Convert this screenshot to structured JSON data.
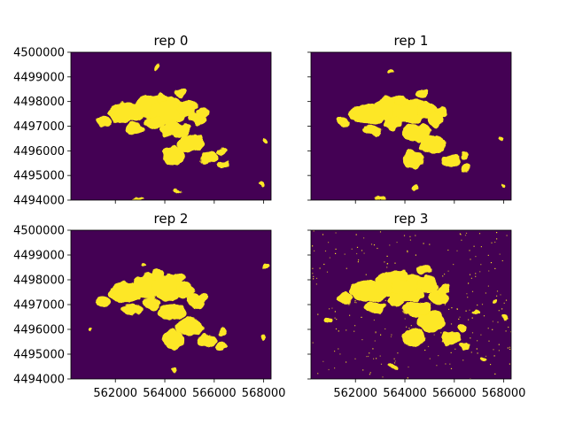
{
  "chart_data": {
    "type": "heatmap",
    "layout": "2x2 grid, shared x and y axes",
    "colormap": "viridis (binary)",
    "colors": {
      "background_value": "#440154",
      "foreground_value": "#fde725"
    },
    "x_range": [
      560200,
      568300
    ],
    "y_range": [
      4494000,
      4500000
    ],
    "x_ticks": [
      "562000",
      "564000",
      "566000",
      "568000"
    ],
    "x_tick_values": [
      562000,
      564000,
      566000,
      568000
    ],
    "y_ticks": [
      "4500000",
      "4499000",
      "4498000",
      "4497000",
      "4496000",
      "4495000",
      "4494000"
    ],
    "y_tick_values": [
      4500000,
      4499000,
      4498000,
      4497000,
      4496000,
      4495000,
      4494000
    ],
    "grid": false,
    "panels": [
      {
        "title": "rep 0",
        "blobs": [
          [
            562500,
            4497550,
            750,
            420
          ],
          [
            563450,
            4497800,
            650,
            500
          ],
          [
            564150,
            4497650,
            700,
            550
          ],
          [
            564900,
            4497750,
            400,
            350
          ],
          [
            565300,
            4497300,
            350,
            300
          ],
          [
            564400,
            4496850,
            600,
            320
          ],
          [
            565050,
            4496300,
            550,
            380
          ],
          [
            564350,
            4495800,
            450,
            400
          ],
          [
            565800,
            4495750,
            400,
            260
          ],
          [
            566350,
            4495450,
            200,
            170
          ],
          [
            561550,
            4497200,
            300,
            220
          ],
          [
            562800,
            4496900,
            400,
            210
          ],
          [
            563600,
            4497150,
            380,
            260
          ],
          [
            563900,
            4498100,
            260,
            200
          ],
          [
            564650,
            4498350,
            260,
            170
          ],
          [
            565550,
            4497550,
            250,
            200
          ],
          [
            566300,
            4496000,
            180,
            150
          ],
          [
            568000,
            4496400,
            110,
            120
          ],
          [
            563650,
            4499350,
            90,
            100
          ],
          [
            562950,
            4494050,
            280,
            60
          ],
          [
            564500,
            4494350,
            130,
            110
          ],
          [
            567950,
            4494600,
            90,
            80
          ]
        ]
      },
      {
        "title": "rep 1",
        "blobs": [
          [
            562500,
            4497500,
            750,
            400
          ],
          [
            563400,
            4497750,
            650,
            480
          ],
          [
            564150,
            4497600,
            700,
            520
          ],
          [
            564900,
            4497650,
            400,
            340
          ],
          [
            565250,
            4497250,
            330,
            280
          ],
          [
            564450,
            4496750,
            600,
            330
          ],
          [
            565100,
            4496250,
            550,
            370
          ],
          [
            564350,
            4495650,
            430,
            360
          ],
          [
            565850,
            4495600,
            380,
            260
          ],
          [
            566450,
            4495300,
            180,
            150
          ],
          [
            561500,
            4497150,
            280,
            200
          ],
          [
            562700,
            4496850,
            400,
            220
          ],
          [
            563500,
            4497100,
            380,
            250
          ],
          [
            563850,
            4498050,
            260,
            190
          ],
          [
            564700,
            4498300,
            250,
            160
          ],
          [
            565450,
            4497600,
            240,
            200
          ],
          [
            566400,
            4495850,
            180,
            150
          ],
          [
            567900,
            4496450,
            100,
            110
          ],
          [
            563450,
            4499200,
            90,
            90
          ],
          [
            563000,
            4494100,
            260,
            70
          ],
          [
            564400,
            4494500,
            120,
            100
          ],
          [
            568000,
            4494600,
            80,
            80
          ]
        ]
      },
      {
        "title": "rep 2",
        "blobs": [
          [
            562400,
            4497500,
            720,
            420
          ],
          [
            563350,
            4497750,
            650,
            480
          ],
          [
            564100,
            4497700,
            680,
            500
          ],
          [
            564850,
            4497600,
            380,
            330
          ],
          [
            565250,
            4497150,
            330,
            290
          ],
          [
            564300,
            4496700,
            600,
            320
          ],
          [
            565000,
            4496100,
            550,
            370
          ],
          [
            564300,
            4495600,
            420,
            380
          ],
          [
            565700,
            4495550,
            420,
            260
          ],
          [
            566300,
            4495350,
            190,
            150
          ],
          [
            561500,
            4497100,
            300,
            220
          ],
          [
            562650,
            4496800,
            400,
            230
          ],
          [
            563450,
            4497050,
            380,
            250
          ],
          [
            563700,
            4498200,
            250,
            190
          ],
          [
            564600,
            4498100,
            250,
            170
          ],
          [
            565500,
            4497300,
            240,
            200
          ],
          [
            566350,
            4495900,
            170,
            150
          ],
          [
            568050,
            4498550,
            110,
            110
          ],
          [
            563150,
            4498600,
            100,
            90
          ],
          [
            564400,
            4494400,
            130,
            110
          ],
          [
            568000,
            4495700,
            90,
            100
          ],
          [
            561000,
            4496000,
            80,
            70
          ]
        ]
      },
      {
        "title": "rep 3",
        "blobs": [
          [
            562500,
            4497550,
            750,
            440
          ],
          [
            563450,
            4497850,
            650,
            520
          ],
          [
            564200,
            4497700,
            720,
            560
          ],
          [
            564950,
            4497800,
            420,
            360
          ],
          [
            565350,
            4497300,
            350,
            300
          ],
          [
            564500,
            4496800,
            620,
            340
          ],
          [
            565100,
            4496300,
            560,
            390
          ],
          [
            564350,
            4495700,
            460,
            400
          ],
          [
            565850,
            4495650,
            420,
            270
          ],
          [
            566450,
            4495350,
            200,
            170
          ],
          [
            561550,
            4497250,
            300,
            230
          ],
          [
            562800,
            4496900,
            420,
            220
          ],
          [
            563600,
            4497200,
            380,
            260
          ],
          [
            563900,
            4498150,
            270,
            200
          ],
          [
            564750,
            4498400,
            270,
            170
          ],
          [
            565600,
            4497600,
            260,
            210
          ],
          [
            566350,
            4496050,
            190,
            160
          ],
          [
            568000,
            4496500,
            110,
            120
          ],
          [
            566900,
            4496700,
            150,
            120
          ],
          [
            560900,
            4496400,
            120,
            100
          ],
          [
            563550,
            4494500,
            200,
            90
          ],
          [
            567200,
            4494800,
            140,
            90
          ],
          [
            567700,
            4497100,
            100,
            80
          ]
        ],
        "speckle": true
      }
    ]
  }
}
